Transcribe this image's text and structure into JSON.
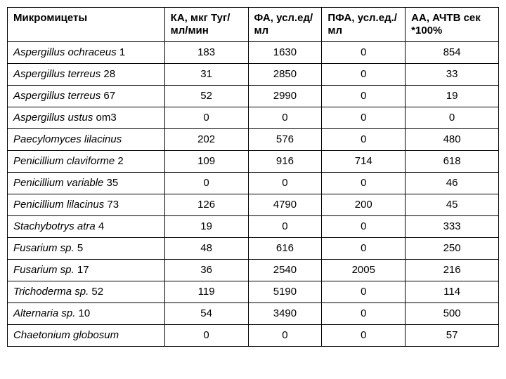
{
  "table": {
    "columns": [
      "Микромицеты",
      "КА, мкг Туг/мл/мин",
      "ФА, усл.ед/мл",
      "ПФА, усл.ед./мл",
      "АА, АЧТВ сек *100%"
    ],
    "column_widths_pct": [
      32,
      17,
      15,
      17,
      19
    ],
    "header_bold": true,
    "font_family": "Arial",
    "font_size_pt": 15,
    "border_color": "#000000",
    "background_color": "#ffffff",
    "text_color": "#000000",
    "rows": [
      {
        "name_italic": "Aspergillus ochraceus",
        "name_suffix": " 1",
        "ka": "183",
        "fa": "1630",
        "pfa": "0",
        "aa": "854"
      },
      {
        "name_italic": "Aspergillus terreus",
        "name_suffix": " 28",
        "ka": "31",
        "fa": "2850",
        "pfa": "0",
        "aa": "33"
      },
      {
        "name_italic": "Aspergillus terreus",
        "name_suffix": " 67",
        "ka": "52",
        "fa": "2990",
        "pfa": "0",
        "aa": "19"
      },
      {
        "name_italic": "Aspergillus ustus",
        "name_suffix": " om3",
        "ka": "0",
        "fa": "0",
        "pfa": "0",
        "aa": "0"
      },
      {
        "name_italic": "Paecylomyces lilacinus",
        "name_suffix": "",
        "ka": "202",
        "fa": "576",
        "pfa": "0",
        "aa": "480"
      },
      {
        "name_italic": "Penicillium claviforme",
        "name_suffix": " 2",
        "ka": "109",
        "fa": "916",
        "pfa": "714",
        "aa": "618"
      },
      {
        "name_italic": "Penicillium variable",
        "name_suffix": " 35",
        "ka": "0",
        "fa": "0",
        "pfa": "0",
        "aa": "46"
      },
      {
        "name_italic": "Penicillium lilacinus",
        "name_suffix": " 73",
        "ka": "126",
        "fa": "4790",
        "pfa": "200",
        "aa": "45"
      },
      {
        "name_italic": "Stachybotrys atra",
        "name_suffix": " 4",
        "ka": "19",
        "fa": "0",
        "pfa": "0",
        "aa": "333"
      },
      {
        "name_italic": "Fusarium sp.",
        "name_suffix": " 5",
        "ka": "48",
        "fa": "616",
        "pfa": "0",
        "aa": "250"
      },
      {
        "name_italic": "Fusarium sp.",
        "name_suffix": " 17",
        "ka": "36",
        "fa": "2540",
        "pfa": "2005",
        "aa": "216"
      },
      {
        "name_italic": "Trichoderma sp.",
        "name_suffix": " 52",
        "ka": "119",
        "fa": "5190",
        "pfa": "0",
        "aa": "114"
      },
      {
        "name_italic": "Alternaria sp.",
        "name_suffix": " 10",
        "ka": "54",
        "fa": "3490",
        "pfa": "0",
        "aa": "500"
      },
      {
        "name_italic": "Chaetonium globosum",
        "name_suffix": "",
        "ka": "0",
        "fa": "0",
        "pfa": "0",
        "aa": "57"
      }
    ]
  }
}
